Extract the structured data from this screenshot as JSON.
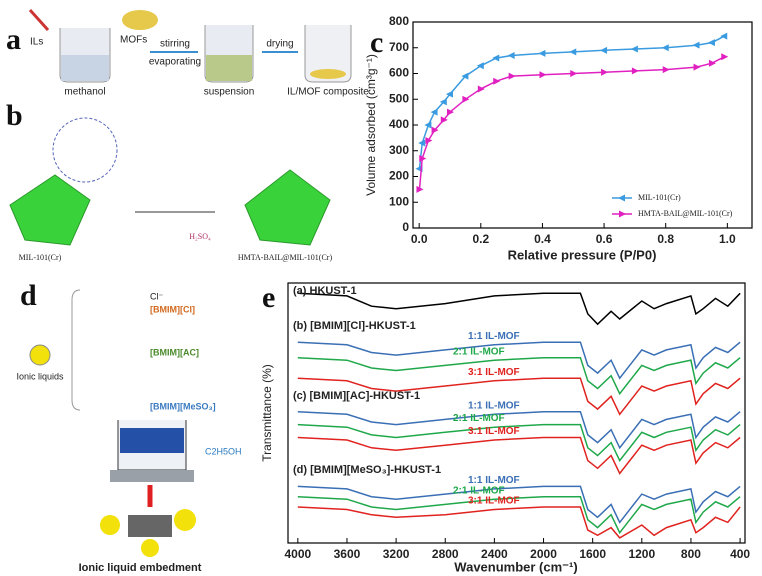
{
  "panels": {
    "a": {
      "letter": "a",
      "ils": "ILs",
      "mofs": "MOFs",
      "stirring": "stirring",
      "evaporating": "evaporating",
      "drying": "drying",
      "methanol": "methanol",
      "suspension": "suspension",
      "composite": "IL/MOF composite"
    },
    "b": {
      "letter": "b",
      "left_label": "MIL-101(Cr)",
      "acid": "H₂SO₄",
      "right_label": "HMTA-BAIL@MIL-101(Cr)"
    },
    "d": {
      "letter": "d",
      "anion": "Cl⁻",
      "il1": "[BMIM][Cl]",
      "il2": "[BMIM][AC]",
      "il3": "[BMIM][MeSO₃]",
      "ionic_liquids": "Ionic liquids",
      "solvent": "C2H5OH",
      "caption": "Ionic liquid embedment"
    }
  },
  "chart_data": [
    {
      "type": "line",
      "letter": "c",
      "x_label": "Relative pressure (P/P0)",
      "y_label": "Volume adsorbed (cm³g⁻¹)",
      "x": [
        0.001,
        0.01,
        0.03,
        0.05,
        0.08,
        0.1,
        0.15,
        0.2,
        0.25,
        0.3,
        0.4,
        0.5,
        0.6,
        0.7,
        0.8,
        0.9,
        0.95,
        0.99
      ],
      "series": [
        {
          "name": "MIL-101(Cr)",
          "color": "#3a9be0",
          "values": [
            230,
            330,
            400,
            450,
            490,
            520,
            590,
            630,
            660,
            670,
            678,
            684,
            690,
            695,
            700,
            710,
            720,
            745
          ]
        },
        {
          "name": "HMTA-BAIL@MIL-101(Cr)",
          "color": "#e020c0",
          "values": [
            150,
            270,
            340,
            380,
            420,
            450,
            500,
            540,
            570,
            590,
            595,
            600,
            605,
            610,
            615,
            625,
            640,
            665
          ]
        }
      ],
      "xlim": [
        -0.02,
        1.08
      ],
      "ylim": [
        0,
        800
      ],
      "xticks": [
        {
          "value": 0,
          "label": "0.0"
        },
        0.2,
        0.4,
        0.6,
        0.8,
        {
          "value": 1,
          "label": "1.0"
        }
      ],
      "yticks": [
        0,
        100,
        200,
        300,
        400,
        500,
        600,
        700,
        800
      ],
      "legend": "lower right",
      "markers": true
    },
    {
      "type": "line",
      "letter": "e",
      "x_label": "Wavenumber (cm⁻¹)",
      "y_label": "Transmittance (%)",
      "annotations": [
        "(a) HKUST-1",
        "(b) [BMIM][Cl]-HKUST-1",
        "(c) [BMIM][AC]-HKUST-1",
        "(d) [BMIM][MeSO₃]-HKUST-1"
      ],
      "x": [
        4000,
        3600,
        3400,
        3200,
        2800,
        2400,
        2000,
        1700,
        1640,
        1560,
        1450,
        1380,
        1200,
        1100,
        1000,
        800,
        760,
        700,
        600,
        500,
        400
      ],
      "series": [
        {
          "name": "HKUST-1",
          "color": "#000000",
          "values": [
            96,
            95,
            91,
            90,
            92,
            95,
            96,
            96,
            88,
            84,
            89,
            86,
            93,
            90,
            92,
            95,
            88,
            90,
            94,
            91,
            96
          ]
        },
        {
          "name": "1:1 IL-MOF",
          "color": "#3a6fb5",
          "values": [
            77,
            76,
            73,
            72,
            74,
            76,
            77,
            77,
            68,
            65,
            70,
            63,
            74,
            72,
            74,
            76,
            67,
            71,
            75,
            73,
            77
          ]
        },
        {
          "name": "2:1 IL-MOF",
          "color": "#1fa84a",
          "values": [
            71,
            70,
            67,
            66,
            68,
            70,
            71,
            71,
            62,
            59,
            64,
            57,
            68,
            66,
            68,
            70,
            61,
            65,
            69,
            67,
            71
          ]
        },
        {
          "name": "3:1 IL-MOF",
          "color": "#e0231f",
          "values": [
            63,
            62,
            59,
            58,
            60,
            62,
            63,
            63,
            54,
            51,
            56,
            49,
            60,
            58,
            60,
            62,
            53,
            57,
            61,
            59,
            63
          ]
        },
        {
          "name": "1:1 IL-MOF",
          "color": "#3a6fb5",
          "values": [
            50,
            49,
            46,
            45,
            47,
            49,
            50,
            50,
            41,
            38,
            43,
            36,
            47,
            45,
            47,
            49,
            40,
            44,
            48,
            46,
            50
          ]
        },
        {
          "name": "2:1 IL-MOF",
          "color": "#1fa84a",
          "values": [
            45,
            44,
            41,
            40,
            42,
            44,
            45,
            45,
            36,
            33,
            38,
            31,
            42,
            40,
            42,
            44,
            35,
            39,
            43,
            41,
            45
          ]
        },
        {
          "name": "3:1 IL-MOF",
          "color": "#e0231f",
          "values": [
            40,
            39,
            36,
            35,
            37,
            39,
            40,
            40,
            31,
            28,
            33,
            26,
            37,
            35,
            37,
            39,
            30,
            34,
            38,
            36,
            40
          ]
        },
        {
          "name": "1:1 IL-MOF",
          "color": "#3a6fb5",
          "values": [
            21,
            20,
            17,
            16,
            18,
            20,
            21,
            21,
            12,
            9,
            14,
            7,
            18,
            16,
            18,
            20,
            11,
            15,
            19,
            17,
            21
          ]
        },
        {
          "name": "2:1 IL-MOF",
          "color": "#1fa84a",
          "values": [
            17,
            16,
            13,
            12,
            14,
            16,
            17,
            17,
            8,
            5,
            10,
            3,
            14,
            12,
            14,
            16,
            7,
            11,
            15,
            13,
            17
          ]
        },
        {
          "name": "3:1 IL-MOF",
          "color": "#e0231f",
          "values": [
            13,
            12,
            10,
            9,
            10,
            12,
            13,
            13,
            4,
            2,
            5,
            1,
            6,
            2,
            5,
            8,
            3,
            5,
            9,
            7,
            13
          ]
        }
      ],
      "xlim": [
        4080,
        360
      ],
      "ylim": [
        -1,
        100
      ],
      "xticks": [
        4000,
        3600,
        3200,
        2800,
        2400,
        2000,
        1600,
        1200,
        800,
        400
      ],
      "labels": "inline",
      "markers": false
    }
  ]
}
